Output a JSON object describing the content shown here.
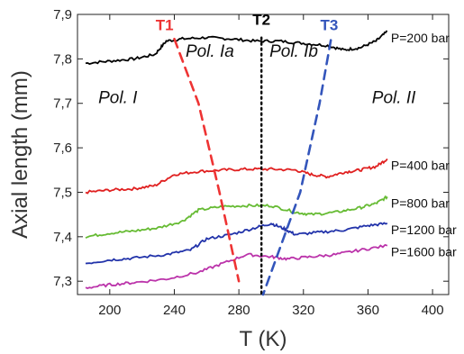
{
  "chart_data": {
    "type": "line",
    "xlabel": "T (K)",
    "ylabel": "Axial length (mm)",
    "xlim": [
      180,
      410
    ],
    "ylim": [
      7.27,
      7.9
    ],
    "x_ticks": [
      200,
      240,
      280,
      320,
      360,
      400
    ],
    "y_ticks": [
      7.3,
      7.4,
      7.5,
      7.6,
      7.7,
      7.8,
      7.9
    ],
    "x_tick_labels": [
      "200",
      "240",
      "280",
      "320",
      "360",
      "400"
    ],
    "y_tick_labels": [
      "7,3",
      "7,4",
      "7,5",
      "7,6",
      "7,7",
      "7,8",
      "7,9"
    ],
    "series": [
      {
        "name": "P=200 bar",
        "color": "#000000",
        "points": [
          [
            185,
            7.79
          ],
          [
            200,
            7.795
          ],
          [
            215,
            7.8
          ],
          [
            228,
            7.81
          ],
          [
            235,
            7.84
          ],
          [
            245,
            7.845
          ],
          [
            260,
            7.848
          ],
          [
            275,
            7.845
          ],
          [
            290,
            7.84
          ],
          [
            305,
            7.84
          ],
          [
            320,
            7.835
          ],
          [
            335,
            7.83
          ],
          [
            345,
            7.82
          ],
          [
            355,
            7.825
          ],
          [
            365,
            7.84
          ],
          [
            372,
            7.862
          ]
        ]
      },
      {
        "name": "P=400 bar",
        "color": "#e02020",
        "points": [
          [
            185,
            7.5
          ],
          [
            200,
            7.505
          ],
          [
            215,
            7.508
          ],
          [
            228,
            7.515
          ],
          [
            240,
            7.54
          ],
          [
            255,
            7.547
          ],
          [
            270,
            7.55
          ],
          [
            285,
            7.552
          ],
          [
            300,
            7.552
          ],
          [
            315,
            7.55
          ],
          [
            325,
            7.54
          ],
          [
            335,
            7.535
          ],
          [
            345,
            7.545
          ],
          [
            355,
            7.55
          ],
          [
            365,
            7.558
          ],
          [
            372,
            7.575
          ]
        ]
      },
      {
        "name": "P=800 bar",
        "color": "#66bb33",
        "points": [
          [
            185,
            7.4
          ],
          [
            200,
            7.408
          ],
          [
            215,
            7.413
          ],
          [
            230,
            7.42
          ],
          [
            245,
            7.435
          ],
          [
            255,
            7.46
          ],
          [
            270,
            7.468
          ],
          [
            285,
            7.47
          ],
          [
            300,
            7.47
          ],
          [
            315,
            7.455
          ],
          [
            325,
            7.45
          ],
          [
            340,
            7.455
          ],
          [
            355,
            7.465
          ],
          [
            365,
            7.475
          ],
          [
            372,
            7.49
          ]
        ]
      },
      {
        "name": "P=1200 bar",
        "color": "#2233aa",
        "points": [
          [
            185,
            7.34
          ],
          [
            200,
            7.348
          ],
          [
            215,
            7.352
          ],
          [
            235,
            7.36
          ],
          [
            250,
            7.37
          ],
          [
            260,
            7.395
          ],
          [
            275,
            7.405
          ],
          [
            290,
            7.42
          ],
          [
            300,
            7.43
          ],
          [
            308,
            7.418
          ],
          [
            315,
            7.405
          ],
          [
            330,
            7.41
          ],
          [
            345,
            7.415
          ],
          [
            360,
            7.425
          ],
          [
            372,
            7.43
          ]
        ]
      },
      {
        "name": "P=1600 bar",
        "color": "#bb33aa",
        "points": [
          [
            185,
            7.285
          ],
          [
            200,
            7.292
          ],
          [
            215,
            7.297
          ],
          [
            235,
            7.305
          ],
          [
            255,
            7.32
          ],
          [
            270,
            7.34
          ],
          [
            285,
            7.36
          ],
          [
            300,
            7.355
          ],
          [
            310,
            7.35
          ],
          [
            325,
            7.355
          ],
          [
            340,
            7.36
          ],
          [
            355,
            7.37
          ],
          [
            372,
            7.38
          ]
        ]
      }
    ],
    "boundaries": [
      {
        "name": "T1",
        "color": "#ee3333",
        "style": "dashed",
        "points": [
          [
            240,
            7.845
          ],
          [
            255,
            7.7
          ],
          [
            268,
            7.5
          ],
          [
            280,
            7.3
          ]
        ]
      },
      {
        "name": "T2",
        "color": "#000000",
        "style": "dotted",
        "points": [
          [
            294,
            7.848
          ],
          [
            294,
            7.27
          ]
        ]
      },
      {
        "name": "T3",
        "color": "#3355bb",
        "style": "dashed",
        "points": [
          [
            337,
            7.842
          ],
          [
            330,
            7.7
          ],
          [
            318,
            7.5
          ],
          [
            295,
            7.27
          ]
        ]
      }
    ],
    "boundary_label_positions": [
      {
        "name": "T1",
        "x": 234,
        "y": 7.865
      },
      {
        "name": "T2",
        "x": 294,
        "y": 7.877
      },
      {
        "name": "T3",
        "x": 336,
        "y": 7.865
      }
    ],
    "phase_labels": [
      {
        "text": "Pol. I",
        "x": 205,
        "y": 7.7
      },
      {
        "text": "Pol. Ia",
        "x": 262,
        "y": 7.805
      },
      {
        "text": "Pol. Ib",
        "x": 314,
        "y": 7.805
      },
      {
        "text": "Pol. II",
        "x": 376,
        "y": 7.7
      }
    ]
  }
}
